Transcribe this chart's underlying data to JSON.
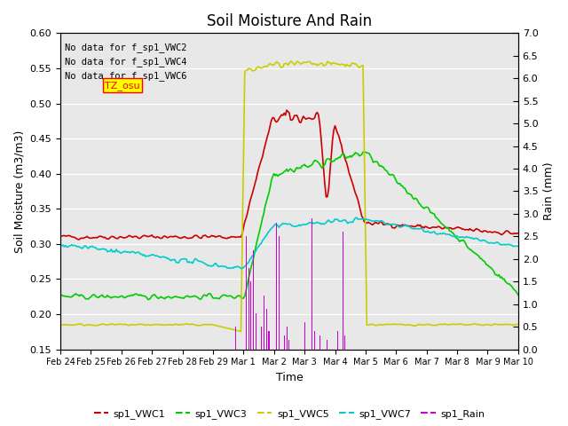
{
  "title": "Soil Moisture And Rain",
  "xlabel": "Time",
  "ylabel_left": "Soil Moisture (m3/m3)",
  "ylabel_right": "Rain (mm)",
  "ylim_left": [
    0.15,
    0.6
  ],
  "ylim_right": [
    0.0,
    7.0
  ],
  "yticks_left": [
    0.15,
    0.2,
    0.25,
    0.3,
    0.35,
    0.4,
    0.45,
    0.5,
    0.55,
    0.6
  ],
  "yticks_right": [
    0.0,
    0.5,
    1.0,
    1.5,
    2.0,
    2.5,
    3.0,
    3.5,
    4.0,
    4.5,
    5.0,
    5.5,
    6.0,
    6.5,
    7.0
  ],
  "bg_color": "#e8e8e8",
  "no_data_text": [
    "No data for f_sp1_VWC2",
    "No data for f_sp1_VWC4",
    "No data for f_sp1_VWC6"
  ],
  "tz_label": "TZ_osu",
  "colors": {
    "VWC1": "#cc0000",
    "VWC3": "#00cc00",
    "VWC5": "#cccc00",
    "VWC7": "#00cccc",
    "Rain": "#cc00cc"
  },
  "legend_labels": [
    "sp1_VWC1",
    "sp1_VWC3",
    "sp1_VWC5",
    "sp1_VWC7",
    "sp1_Rain"
  ],
  "xtick_labels": [
    "Feb 24",
    "Feb 25",
    "Feb 26",
    "Feb 27",
    "Feb 28",
    "Feb 29",
    "Mar 1",
    "Mar 2",
    "Mar 3",
    "Mar 4",
    "Mar 5",
    "Mar 6",
    "Mar 7",
    "Mar 8",
    "Mar 9",
    "Mar 10"
  ]
}
